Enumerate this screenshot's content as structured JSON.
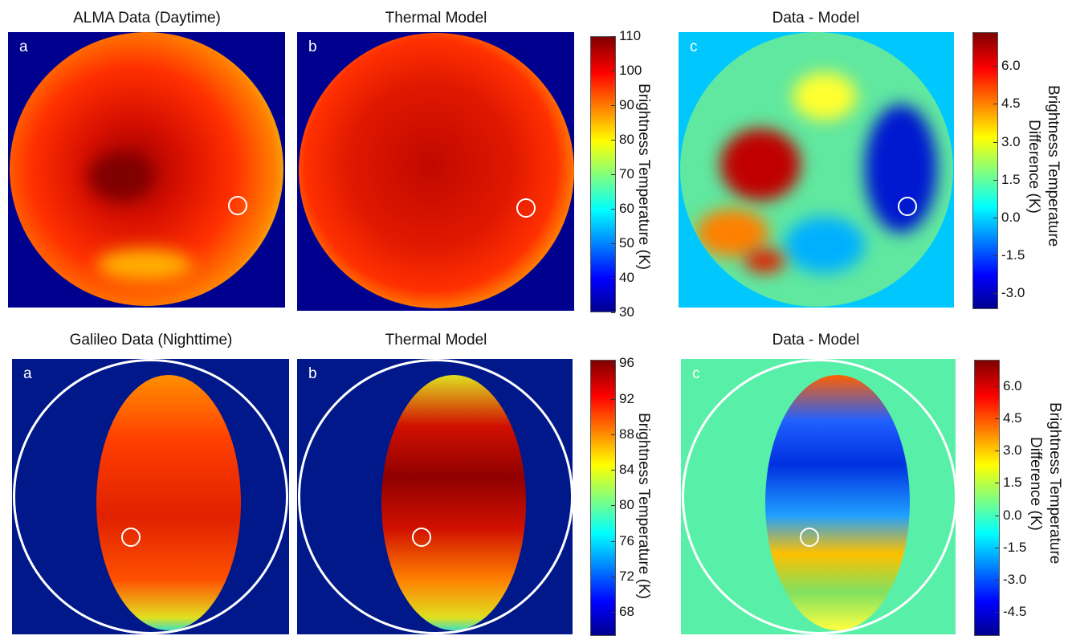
{
  "rows": [
    {
      "titles": [
        "ALMA Data (Daytime)",
        "Thermal Model",
        "Data - Model"
      ],
      "panel_labels": [
        "a",
        "b",
        "c"
      ],
      "temp_colorbar": {
        "label": "Brightness Temperature (K)",
        "ticks": [
          "110",
          "100",
          "90",
          "80",
          "70",
          "60",
          "50",
          "40",
          "30"
        ],
        "range": [
          30,
          110
        ]
      },
      "diff_colorbar": {
        "label_line1": "Brightness Temperature",
        "label_line2": "Difference (K)",
        "ticks": [
          "6.0",
          "4.5",
          "3.0",
          "1.5",
          "0.0",
          "-1.5",
          "-3.0"
        ],
        "range": [
          -3.64,
          7.35
        ]
      }
    },
    {
      "titles": [
        "Galileo Data (Nighttime)",
        "Thermal Model",
        "Data - Model"
      ],
      "panel_labels": [
        "a",
        "b",
        "c"
      ],
      "temp_colorbar": {
        "label": "Brightness Temperature (K)",
        "ticks": [
          "96",
          "92",
          "88",
          "84",
          "80",
          "76",
          "72",
          "68"
        ],
        "range": [
          65.3,
          96.4
        ]
      },
      "diff_colorbar": {
        "label_line1": "Brightness Temperature",
        "label_line2": "Difference (K)",
        "ticks": [
          "6.0",
          "4.5",
          "3.0",
          "1.5",
          "0.0",
          "-1.5",
          "-3.0",
          "-4.5"
        ],
        "range": [
          -5.63,
          7.24
        ]
      }
    }
  ],
  "chart_data": {
    "type": "heatmap",
    "colormap": "jet",
    "panels": 6,
    "description_units": "K"
  }
}
